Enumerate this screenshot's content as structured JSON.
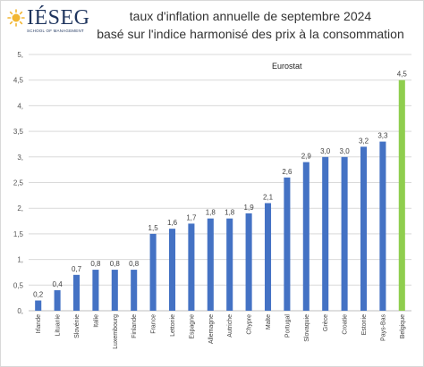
{
  "logo": {
    "text": "IÉSEG",
    "subtitle": "SCHOOL OF MANAGEMENT"
  },
  "chart_data": {
    "type": "bar",
    "title_lines": [
      "taux d'inflation annuelle de septembre 2024",
      "basé sur l'indice harmonisé des prix à la consommation"
    ],
    "annotation": "Eurostat",
    "xlabel": "",
    "ylabel": "",
    "ylim": [
      0,
      5
    ],
    "yticks": [
      "0,",
      "0,5",
      "1,",
      "1,5",
      "2,",
      "2,5",
      "3,",
      "3,5",
      "4,",
      "4,5",
      "5,"
    ],
    "grid": true,
    "legend": "none",
    "categories": [
      "Irlande",
      "Lituanie",
      "Slovénie",
      "Italie",
      "Luxembourg",
      "Finlande",
      "France",
      "Lettonie",
      "Espagne",
      "Allemagne",
      "Autriche",
      "Chypre",
      "Malte",
      "Portugal",
      "Slovaquie",
      "Grèce",
      "Croatie",
      "Estonie",
      "Pays-Bas",
      "Belgique"
    ],
    "values": [
      0.2,
      0.4,
      0.7,
      0.8,
      0.8,
      0.8,
      1.5,
      1.6,
      1.7,
      1.8,
      1.8,
      1.9,
      2.1,
      2.6,
      2.9,
      3.0,
      3.0,
      3.2,
      3.3,
      4.5
    ],
    "value_labels": [
      "0,2",
      "0,4",
      "0,7",
      "0,8",
      "0,8",
      "0,8",
      "1,5",
      "1,6",
      "1,7",
      "1,8",
      "1,8",
      "1,9",
      "2,1",
      "2,6",
      "2,9",
      "3,0",
      "3,0",
      "3,2",
      "3,3",
      "4,5"
    ],
    "colors": {
      "bar": "#4472c4",
      "highlight": "#8fce4e",
      "grid": "#d9d9d9",
      "axis": "#bfbfbf"
    },
    "highlight_category": "Belgique"
  }
}
